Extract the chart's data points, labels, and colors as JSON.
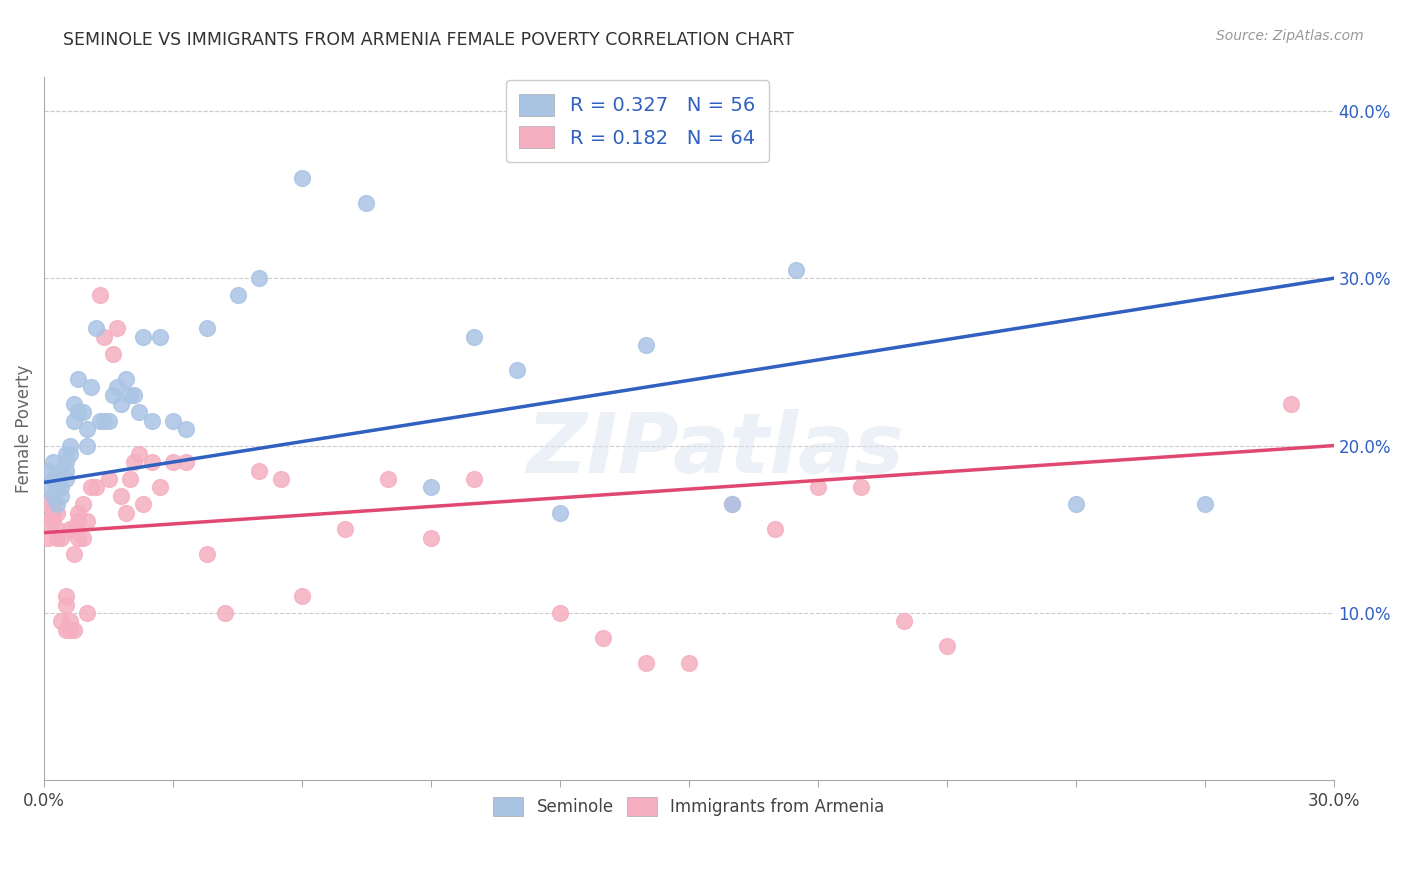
{
  "title": "SEMINOLE VS IMMIGRANTS FROM ARMENIA FEMALE POVERTY CORRELATION CHART",
  "source": "Source: ZipAtlas.com",
  "ylabel": "Female Poverty",
  "xlim": [
    0.0,
    0.3
  ],
  "ylim": [
    0.0,
    0.42
  ],
  "xtick_positions": [
    0.0,
    0.03,
    0.06,
    0.09,
    0.12,
    0.15,
    0.18,
    0.21,
    0.24,
    0.27,
    0.3
  ],
  "xtick_labels_show": {
    "0.0": "0.0%",
    "0.30": "30.0%"
  },
  "yticks_right": [
    0.1,
    0.2,
    0.3,
    0.4
  ],
  "background_color": "#ffffff",
  "grid_color": "#cccccc",
  "seminole_color": "#aac4e4",
  "armenia_color": "#f5afc0",
  "seminole_line_color": "#3060c0",
  "armenia_line_color": "#e04870",
  "legend_label_1": "R = 0.327   N = 56",
  "legend_label_2": "R = 0.182   N = 64",
  "legend_seminole": "Seminole",
  "legend_armenia": "Immigrants from Armenia",
  "seminole_line_x0": 0.0,
  "seminole_line_y0": 0.178,
  "seminole_line_x1": 0.3,
  "seminole_line_y1": 0.3,
  "armenia_line_x0": 0.0,
  "armenia_line_y0": 0.148,
  "armenia_line_x1": 0.3,
  "armenia_line_y1": 0.2,
  "seminole_x": [
    0.001,
    0.001,
    0.002,
    0.002,
    0.002,
    0.003,
    0.003,
    0.003,
    0.004,
    0.004,
    0.004,
    0.005,
    0.005,
    0.005,
    0.005,
    0.006,
    0.006,
    0.007,
    0.007,
    0.008,
    0.008,
    0.009,
    0.01,
    0.01,
    0.011,
    0.012,
    0.013,
    0.014,
    0.015,
    0.016,
    0.017,
    0.018,
    0.019,
    0.02,
    0.021,
    0.022,
    0.023,
    0.025,
    0.027,
    0.03,
    0.033,
    0.038,
    0.045,
    0.05,
    0.06,
    0.075,
    0.09,
    0.1,
    0.11,
    0.12,
    0.14,
    0.15,
    0.16,
    0.175,
    0.24,
    0.27
  ],
  "seminole_y": [
    0.185,
    0.175,
    0.17,
    0.18,
    0.19,
    0.175,
    0.18,
    0.165,
    0.185,
    0.175,
    0.17,
    0.195,
    0.19,
    0.185,
    0.18,
    0.2,
    0.195,
    0.225,
    0.215,
    0.24,
    0.22,
    0.22,
    0.21,
    0.2,
    0.235,
    0.27,
    0.215,
    0.215,
    0.215,
    0.23,
    0.235,
    0.225,
    0.24,
    0.23,
    0.23,
    0.22,
    0.265,
    0.215,
    0.265,
    0.215,
    0.21,
    0.27,
    0.29,
    0.3,
    0.36,
    0.345,
    0.175,
    0.265,
    0.245,
    0.16,
    0.26,
    0.39,
    0.165,
    0.305,
    0.165,
    0.165
  ],
  "armenia_x": [
    0.001,
    0.001,
    0.001,
    0.002,
    0.002,
    0.002,
    0.003,
    0.003,
    0.003,
    0.004,
    0.004,
    0.005,
    0.005,
    0.005,
    0.006,
    0.006,
    0.006,
    0.007,
    0.007,
    0.007,
    0.008,
    0.008,
    0.008,
    0.009,
    0.009,
    0.01,
    0.01,
    0.011,
    0.012,
    0.013,
    0.014,
    0.015,
    0.016,
    0.017,
    0.018,
    0.019,
    0.02,
    0.021,
    0.022,
    0.023,
    0.025,
    0.027,
    0.03,
    0.033,
    0.038,
    0.042,
    0.05,
    0.055,
    0.06,
    0.07,
    0.08,
    0.09,
    0.1,
    0.12,
    0.13,
    0.14,
    0.15,
    0.16,
    0.17,
    0.18,
    0.19,
    0.2,
    0.21,
    0.29
  ],
  "armenia_y": [
    0.165,
    0.155,
    0.145,
    0.16,
    0.155,
    0.165,
    0.15,
    0.145,
    0.16,
    0.145,
    0.095,
    0.11,
    0.105,
    0.09,
    0.15,
    0.095,
    0.09,
    0.135,
    0.15,
    0.09,
    0.16,
    0.145,
    0.155,
    0.165,
    0.145,
    0.155,
    0.1,
    0.175,
    0.175,
    0.29,
    0.265,
    0.18,
    0.255,
    0.27,
    0.17,
    0.16,
    0.18,
    0.19,
    0.195,
    0.165,
    0.19,
    0.175,
    0.19,
    0.19,
    0.135,
    0.1,
    0.185,
    0.18,
    0.11,
    0.15,
    0.18,
    0.145,
    0.18,
    0.1,
    0.085,
    0.07,
    0.07,
    0.165,
    0.15,
    0.175,
    0.175,
    0.095,
    0.08,
    0.225
  ]
}
